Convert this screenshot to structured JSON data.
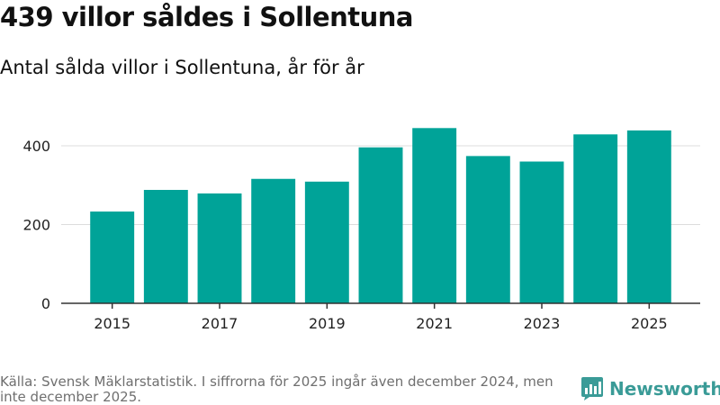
{
  "title": "439 villor såldes i Sollentuna",
  "subtitle": "Antal sålda villor i Sollentuna, år för år",
  "source_text": "Källa: Svensk Mäklarstatistik. I siffrorna för 2025 ingår även december 2024, men inte december 2025.",
  "brand": {
    "name": "Newsworthy",
    "logo_icon": "bar-chart-logo-icon",
    "color": "#3a9b97"
  },
  "colors": {
    "bar": "#00a398",
    "grid": "#dddddd",
    "axis": "#333333",
    "tick_text": "#222222"
  },
  "chart_data": {
    "type": "bar",
    "title": "439 villor såldes i Sollentuna",
    "subtitle": "Antal sålda villor i Sollentuna, år för år",
    "xlabel": "",
    "ylabel": "",
    "categories": [
      "2015",
      "2016",
      "2017",
      "2018",
      "2019",
      "2020",
      "2021",
      "2022",
      "2023",
      "2024",
      "2025"
    ],
    "values": [
      233,
      288,
      279,
      316,
      309,
      396,
      445,
      374,
      360,
      429,
      439
    ],
    "x_tick_labels": [
      "2015",
      "2017",
      "2019",
      "2021",
      "2023",
      "2025"
    ],
    "y_ticks": [
      0,
      200,
      400
    ],
    "ylim": [
      0,
      500
    ],
    "grid": true,
    "legend": "none"
  }
}
